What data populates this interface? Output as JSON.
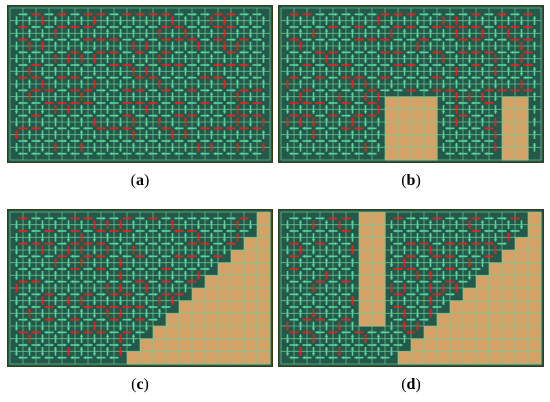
{
  "figure": {
    "colors": {
      "background_free": "#24584a",
      "background_obstacle": "#d4a266",
      "grid_line": "#6fcf98",
      "arrow_normal": "#55d39a",
      "arrow_overlap": "#e8201c",
      "frame": "#3a3a1a"
    },
    "panels": [
      {
        "id": "a",
        "caption": "a",
        "obstacle": "none"
      },
      {
        "id": "b",
        "caption": "b",
        "obstacle": "two-rectangles-bottom"
      },
      {
        "id": "c",
        "caption": "c",
        "obstacle": "staircase-diagonal"
      },
      {
        "id": "d",
        "caption": "d",
        "obstacle": "staircase-diagonal-with-slot"
      }
    ]
  }
}
